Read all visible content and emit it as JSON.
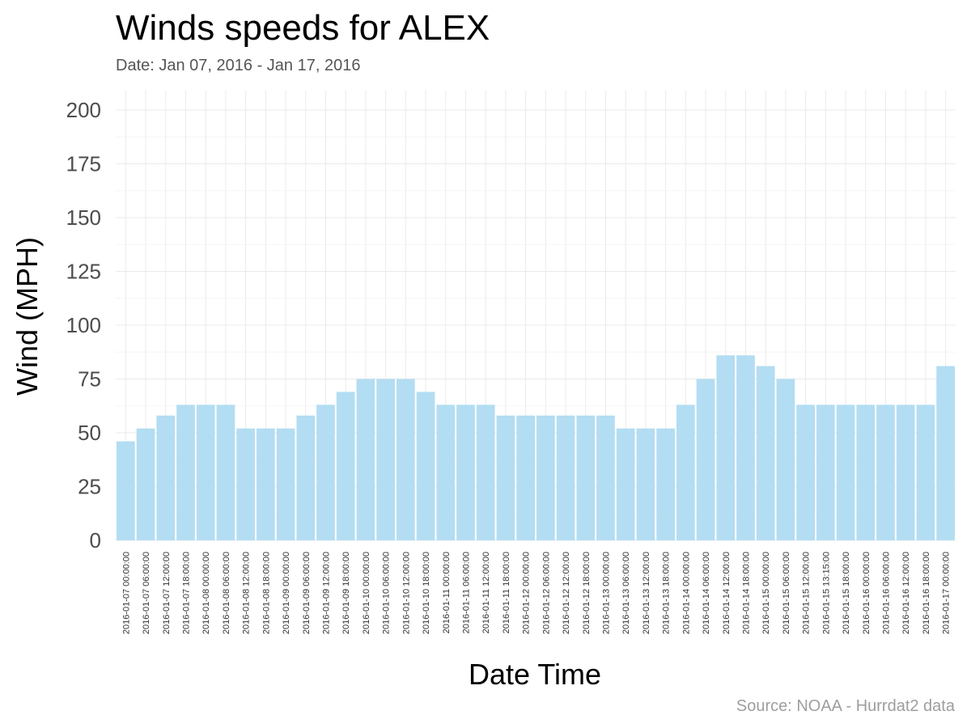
{
  "header": {
    "title": "Winds speeds for ALEX",
    "subtitle": "Date:  Jan 07, 2016 - Jan 17, 2016",
    "caption": "Source: NOAA - Hurrdat2 data"
  },
  "colors": {
    "bar": "#b3ddf2",
    "grid": "#ebebeb"
  },
  "chart_data": {
    "type": "bar",
    "title": "Winds speeds for ALEX",
    "subtitle": "Date:  Jan 07, 2016 - Jan 17, 2016",
    "xlabel": "Date Time",
    "ylabel": "Wind (MPH)",
    "ylim": [
      0,
      205
    ],
    "yticks": [
      0,
      25,
      50,
      75,
      100,
      125,
      150,
      175,
      200
    ],
    "grid": true,
    "categories": [
      "2016-01-07 00:00:00",
      "2016-01-07 06:00:00",
      "2016-01-07 12:00:00",
      "2016-01-07 18:00:00",
      "2016-01-08 00:00:00",
      "2016-01-08 06:00:00",
      "2016-01-08 12:00:00",
      "2016-01-08 18:00:00",
      "2016-01-09 00:00:00",
      "2016-01-09 06:00:00",
      "2016-01-09 12:00:00",
      "2016-01-09 18:00:00",
      "2016-01-10 00:00:00",
      "2016-01-10 06:00:00",
      "2016-01-10 12:00:00",
      "2016-01-10 18:00:00",
      "2016-01-11 00:00:00",
      "2016-01-11 06:00:00",
      "2016-01-11 12:00:00",
      "2016-01-11 18:00:00",
      "2016-01-12 00:00:00",
      "2016-01-12 06:00:00",
      "2016-01-12 12:00:00",
      "2016-01-12 18:00:00",
      "2016-01-13 00:00:00",
      "2016-01-13 06:00:00",
      "2016-01-13 12:00:00",
      "2016-01-13 18:00:00",
      "2016-01-14 00:00:00",
      "2016-01-14 06:00:00",
      "2016-01-14 12:00:00",
      "2016-01-14 18:00:00",
      "2016-01-15 00:00:00",
      "2016-01-15 06:00:00",
      "2016-01-15 12:00:00",
      "2016-01-15 13:15:00",
      "2016-01-15 18:00:00",
      "2016-01-16 00:00:00",
      "2016-01-16 06:00:00",
      "2016-01-16 12:00:00",
      "2016-01-16 18:00:00",
      "2016-01-17 00:00:00"
    ],
    "values": [
      46,
      52,
      58,
      63,
      63,
      63,
      52,
      52,
      52,
      58,
      63,
      69,
      75,
      75,
      75,
      69,
      63,
      63,
      63,
      58,
      58,
      58,
      58,
      58,
      58,
      52,
      52,
      52,
      63,
      75,
      86,
      86,
      81,
      75,
      63,
      63,
      63,
      63,
      63,
      63,
      63,
      81
    ],
    "caption": "Source: NOAA - Hurrdat2 data"
  }
}
